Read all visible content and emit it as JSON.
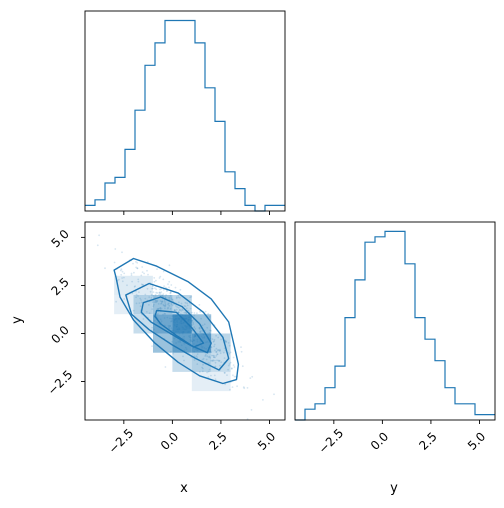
{
  "colors": {
    "primary": "#1f77b4",
    "axis": "#000000",
    "background": "#ffffff"
  },
  "labels": {
    "x": "x",
    "y": "y"
  },
  "chart_data": [
    {
      "type": "histogram",
      "panel": "top-left",
      "variable": "x",
      "xlim": [
        -4.5,
        5.8
      ],
      "bins": [
        -4.5,
        -3.985,
        -3.47,
        -2.955,
        -2.44,
        -1.925,
        -1.41,
        -0.895,
        -0.38,
        0.135,
        0.65,
        1.165,
        1.68,
        2.195,
        2.71,
        3.225,
        3.74,
        4.255,
        4.77,
        5.285,
        5.8
      ],
      "counts": [
        1,
        2,
        5,
        6,
        11,
        18,
        26,
        30,
        34,
        34,
        34,
        30,
        22,
        16,
        7,
        4,
        1,
        0,
        1,
        1
      ],
      "x_ticks": [
        -2.5,
        0.0,
        2.5,
        5.0
      ],
      "show_tick_labels": false
    },
    {
      "type": "heatmap",
      "panel": "bottom-left",
      "xlabel": "x",
      "ylabel": "y",
      "xlim": [
        -4.5,
        5.8
      ],
      "ylim": [
        -4.5,
        5.8
      ],
      "x_ticks": [
        -2.5,
        0.0,
        2.5,
        5.0
      ],
      "x_tick_labels": [
        "−2.5",
        "0.0",
        "2.5",
        "5.0"
      ],
      "y_ticks": [
        -2.5,
        0.0,
        2.5,
        5.0
      ],
      "y_tick_labels": [
        "−2.5",
        "0.0",
        "2.5",
        "5.0"
      ],
      "cells": [
        {
          "x": -1.5,
          "y": 1.5,
          "v": 0.35
        },
        {
          "x": -0.5,
          "y": 1.5,
          "v": 0.45
        },
        {
          "x": 0.5,
          "y": 1.5,
          "v": 0.3
        },
        {
          "x": -1.5,
          "y": 0.5,
          "v": 0.25
        },
        {
          "x": -0.5,
          "y": 0.5,
          "v": 0.65
        },
        {
          "x": 0.5,
          "y": 0.5,
          "v": 0.85
        },
        {
          "x": 1.5,
          "y": 0.5,
          "v": 0.45
        },
        {
          "x": -0.5,
          "y": -0.5,
          "v": 0.45
        },
        {
          "x": 0.5,
          "y": -0.5,
          "v": 0.7
        },
        {
          "x": 1.5,
          "y": -0.5,
          "v": 0.75
        },
        {
          "x": 2.5,
          "y": -0.5,
          "v": 0.3
        },
        {
          "x": 0.5,
          "y": -1.5,
          "v": 0.25
        },
        {
          "x": 1.5,
          "y": -1.5,
          "v": 0.35
        },
        {
          "x": 2.5,
          "y": -1.5,
          "v": 0.25
        },
        {
          "x": -2.5,
          "y": 2.5,
          "v": 0.15
        },
        {
          "x": -1.5,
          "y": 2.5,
          "v": 0.15
        },
        {
          "x": -2.5,
          "y": 1.5,
          "v": 0.12
        },
        {
          "x": 2.5,
          "y": -2.5,
          "v": 0.12
        },
        {
          "x": 1.5,
          "y": -2.5,
          "v": 0.12
        }
      ],
      "contours": [
        [
          [
            -3.0,
            3.3
          ],
          [
            -2.0,
            3.9
          ],
          [
            -0.8,
            3.5
          ],
          [
            0.8,
            2.7
          ],
          [
            2.0,
            1.8
          ],
          [
            2.9,
            0.6
          ],
          [
            3.2,
            -0.7
          ],
          [
            3.4,
            -1.6
          ],
          [
            3.3,
            -2.4
          ],
          [
            2.6,
            -2.6
          ],
          [
            1.4,
            -2.2
          ],
          [
            0.3,
            -1.5
          ],
          [
            -0.9,
            -0.5
          ],
          [
            -2.0,
            0.7
          ],
          [
            -2.7,
            1.9
          ],
          [
            -2.9,
            2.9
          ]
        ],
        [
          [
            -2.4,
            2.0
          ],
          [
            -1.2,
            2.6
          ],
          [
            0.3,
            2.1
          ],
          [
            1.6,
            1.1
          ],
          [
            2.6,
            -0.2
          ],
          [
            2.9,
            -1.3
          ],
          [
            2.4,
            -1.9
          ],
          [
            1.2,
            -1.3
          ],
          [
            0.0,
            -0.6
          ],
          [
            -1.2,
            0.2
          ],
          [
            -2.1,
            1.0
          ]
        ],
        [
          [
            -1.5,
            1.6
          ],
          [
            -0.6,
            1.9
          ],
          [
            0.5,
            1.4
          ],
          [
            1.4,
            0.5
          ],
          [
            2.0,
            -0.5
          ],
          [
            1.8,
            -1.0
          ],
          [
            0.9,
            -0.6
          ],
          [
            -0.1,
            0.0
          ],
          [
            -1.1,
            0.6
          ],
          [
            -1.6,
            1.1
          ]
        ],
        [
          [
            -0.8,
            1.2
          ],
          [
            0.2,
            1.1
          ],
          [
            1.0,
            0.3
          ],
          [
            1.6,
            -0.5
          ],
          [
            1.1,
            -0.7
          ],
          [
            0.2,
            -0.1
          ],
          [
            -0.6,
            0.5
          ],
          [
            -0.9,
            0.9
          ]
        ]
      ]
    },
    {
      "type": "histogram",
      "panel": "bottom-right",
      "xlabel": "y",
      "variable": "y",
      "xlim": [
        -4.5,
        5.8
      ],
      "bins": [
        -4.5,
        -3.985,
        -3.47,
        -2.955,
        -2.44,
        -1.925,
        -1.41,
        -0.895,
        -0.38,
        0.135,
        0.65,
        1.165,
        1.68,
        2.195,
        2.71,
        3.225,
        3.74,
        4.255,
        4.77,
        5.285,
        5.8
      ],
      "counts": [
        0,
        2,
        3,
        6,
        10,
        19,
        26,
        33,
        34,
        35,
        35,
        29,
        19,
        15,
        11,
        6,
        3,
        3,
        1,
        1
      ],
      "x_ticks": [
        -2.5,
        0.0,
        2.5,
        5.0
      ],
      "x_tick_labels": [
        "−2.5",
        "0.0",
        "2.5",
        "5.0"
      ]
    }
  ]
}
